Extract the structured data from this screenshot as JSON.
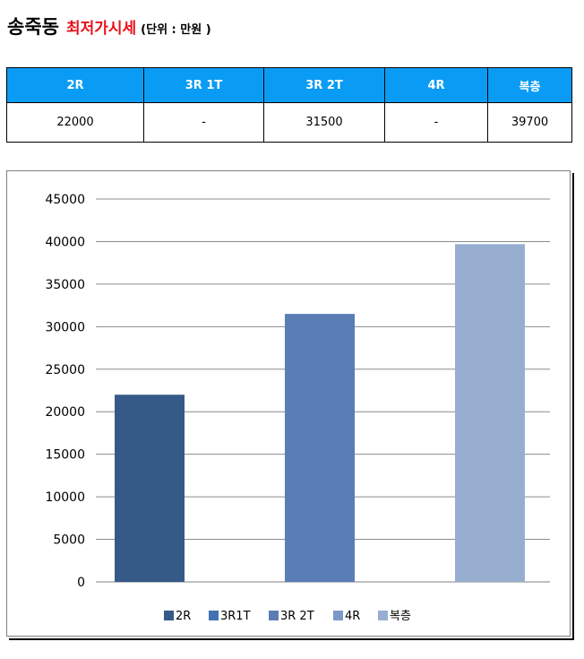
{
  "header": {
    "location": "송죽동",
    "title": "최저가시세",
    "unit": "(단위 : 만원 )"
  },
  "table": {
    "columns": [
      "2R",
      "3R 1T",
      "3R 2T",
      "4R",
      "복층"
    ],
    "values": [
      "22000",
      "-",
      "31500",
      "-",
      "39700"
    ]
  },
  "colors": {
    "header_bg": "#0a9cf5",
    "title_red": "#e8101a",
    "series": [
      "#365a87",
      "#4471b2",
      "#5a7db5",
      "#7b98c8",
      "#98aed0"
    ]
  },
  "chart_data": {
    "type": "bar",
    "categories": [
      "2R",
      "3R1T",
      "3R 2T",
      "4R",
      "복층"
    ],
    "values": [
      22000,
      null,
      31500,
      null,
      39700
    ],
    "ylim": [
      0,
      45000
    ],
    "yticks": [
      0,
      5000,
      10000,
      15000,
      20000,
      25000,
      30000,
      35000,
      40000,
      45000
    ],
    "grid": true,
    "legend": {
      "position": "bottom",
      "entries": [
        "2R",
        "3R1T",
        "3R 2T",
        "4R",
        "복층"
      ]
    }
  }
}
